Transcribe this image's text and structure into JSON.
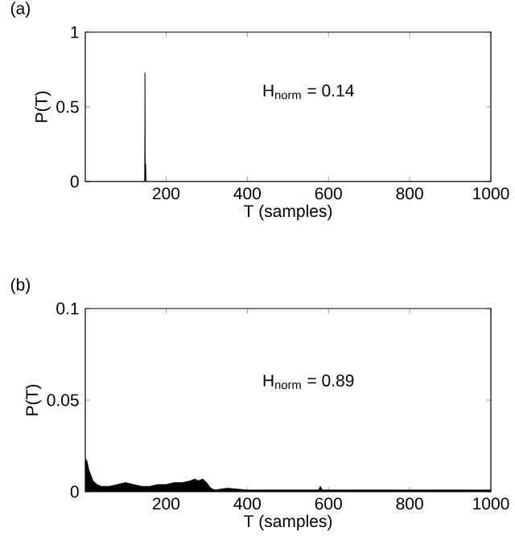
{
  "chart_data": [
    {
      "type": "area",
      "title": "(a)",
      "xlabel": "T (samples)",
      "ylabel": "P(T)",
      "annotations": [
        "H$_{norm}$ = 0.14"
      ],
      "xlim": [
        1,
        1000
      ],
      "ylim": [
        0,
        1
      ],
      "xticks": [
        200,
        400,
        600,
        800,
        1000
      ],
      "yticks": [
        0,
        0.5,
        1
      ],
      "grid": false,
      "series": [
        {
          "color": "#000000",
          "x": [
            1,
            147,
            148,
            149,
            150,
            151,
            200,
            400,
            600,
            800,
            1000
          ],
          "values": [
            0,
            0,
            0.73,
            0.12,
            0.12,
            0,
            0,
            0,
            0,
            0,
            0
          ]
        }
      ]
    },
    {
      "type": "area",
      "title": "(b)",
      "xlabel": "T (samples)",
      "ylabel": "P(T)",
      "annotations": [
        "H$_{norm}$ = 0.89"
      ],
      "xlim": [
        1,
        1000
      ],
      "ylim": [
        0,
        0.1
      ],
      "xticks": [
        200,
        400,
        600,
        800,
        1000
      ],
      "yticks": [
        0,
        0.05,
        0.1
      ],
      "grid": false,
      "series": [
        {
          "color": "#000000",
          "x": [
            1,
            5,
            10,
            20,
            30,
            40,
            60,
            80,
            100,
            120,
            140,
            160,
            180,
            200,
            220,
            240,
            260,
            270,
            280,
            290,
            300,
            310,
            320,
            350,
            400,
            450,
            500,
            550,
            575,
            580,
            585,
            600,
            650,
            700,
            800,
            900,
            1000
          ],
          "values": [
            0.018,
            0.017,
            0.012,
            0.006,
            0.004,
            0.003,
            0.003,
            0.004,
            0.005,
            0.004,
            0.003,
            0.003,
            0.004,
            0.004,
            0.005,
            0.005,
            0.006,
            0.007,
            0.006,
            0.007,
            0.005,
            0.002,
            0.001,
            0.002,
            0.001,
            0.001,
            0.001,
            0.001,
            0.001,
            0.003,
            0.001,
            0.001,
            0.001,
            0.001,
            0.001,
            0.001,
            0.001
          ]
        }
      ]
    }
  ]
}
